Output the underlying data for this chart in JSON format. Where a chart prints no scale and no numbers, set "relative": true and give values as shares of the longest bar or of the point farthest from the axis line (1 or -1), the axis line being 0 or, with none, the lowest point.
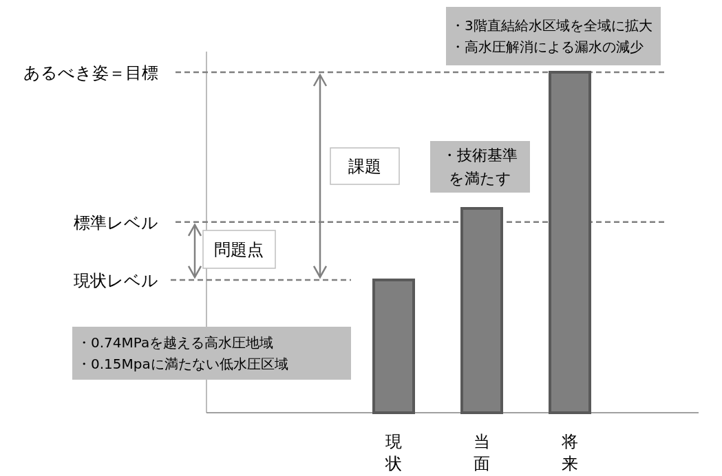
{
  "chart_data": {
    "type": "bar",
    "relative": true,
    "categories": [
      "現状",
      "当面",
      "将来"
    ],
    "values": [
      0.39,
      0.6,
      1
    ],
    "color": "#7f7f7f",
    "ref_lines": [
      {
        "axis": "y",
        "value": 1,
        "label": "あるべき姿＝目標",
        "color": "#7f7f7f",
        "line_style": "dashed"
      },
      {
        "axis": "y",
        "value": 0.56,
        "label": "標準レベル",
        "color": "#7f7f7f",
        "line_style": "dashed"
      },
      {
        "axis": "y",
        "value": 0.39,
        "label": "現状レベル",
        "color": "#7f7f7f",
        "line_style": "dashed"
      }
    ],
    "annotations": [
      "・3階直結給水区域を全域に拡大",
      "・高水圧解消による漏水の減少",
      "課題",
      "・技術基準",
      "を満たす",
      "問題点",
      "・0.74MPaを越える高水圧地域",
      "・0.15Mpaに満たない低水圧区域"
    ]
  }
}
